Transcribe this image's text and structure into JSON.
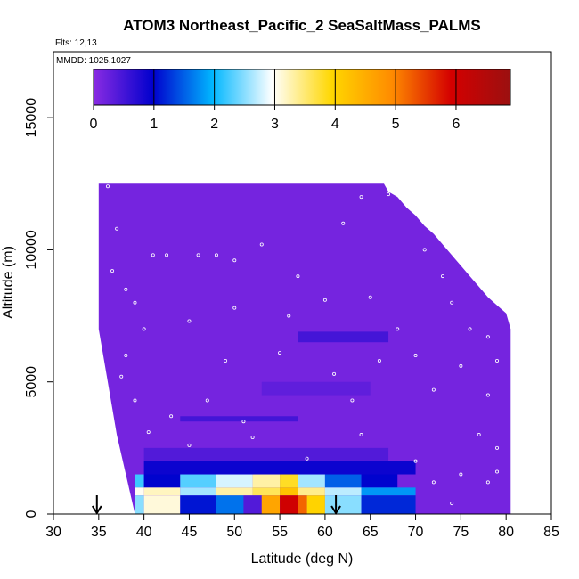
{
  "chart_data": {
    "type": "heatmap",
    "title": "ATOM3 Northeast_Pacific_2 SeaSaltMass_PALMS",
    "annotations": {
      "flights": "Flts: 12,13",
      "dates": "MMDD: 1025,1027"
    },
    "xlabel": "Latitude (deg N)",
    "ylabel": "Altitude (m)",
    "xlim": [
      30,
      85
    ],
    "ylim": [
      0,
      17500
    ],
    "x_ticks": [
      "30",
      "35",
      "40",
      "45",
      "50",
      "55",
      "60",
      "65",
      "70",
      "75",
      "80",
      "85"
    ],
    "y_ticks": [
      "0",
      "5000",
      "10000",
      "15000"
    ],
    "colorbar": {
      "ticks": [
        "0",
        "1",
        "2",
        "3",
        "4",
        "5",
        "6"
      ],
      "range": [
        0,
        6.9
      ],
      "colors": [
        "#8a2be2",
        "#0000cd",
        "#00b7ff",
        "#ffffff",
        "#ffd700",
        "#ff8c00",
        "#d40000",
        "#9b1010"
      ],
      "placement": "top"
    },
    "curtain_top_altitude": [
      [
        35,
        12500
      ],
      [
        66.5,
        12500
      ],
      [
        67,
        12200
      ],
      [
        68,
        12000
      ],
      [
        69,
        11600
      ],
      [
        70,
        11300
      ],
      [
        71,
        10900
      ],
      [
        72,
        10600
      ],
      [
        73,
        10200
      ],
      [
        74,
        9800
      ],
      [
        75,
        9400
      ],
      [
        76,
        9000
      ],
      [
        77,
        8600
      ],
      [
        78,
        8200
      ],
      [
        79,
        7900
      ],
      [
        80,
        7600
      ],
      [
        80.5,
        7000
      ]
    ],
    "curtain_left_edge": [
      [
        12500,
        35
      ],
      [
        9500,
        35
      ],
      [
        7000,
        35
      ],
      [
        5000,
        36
      ],
      [
        3000,
        37
      ],
      [
        1500,
        38
      ],
      [
        0,
        39
      ]
    ],
    "cells": [
      {
        "lat": [
          39,
          40
        ],
        "alt": [
          1000,
          1500
        ],
        "value": 2.2
      },
      {
        "lat": [
          40,
          44
        ],
        "alt": [
          1000,
          1500
        ],
        "value": 1.0
      },
      {
        "lat": [
          44,
          48
        ],
        "alt": [
          1000,
          1500
        ],
        "value": 2.3
      },
      {
        "lat": [
          48,
          52
        ],
        "alt": [
          1000,
          1500
        ],
        "value": 2.8
      },
      {
        "lat": [
          52,
          55
        ],
        "alt": [
          1000,
          1500
        ],
        "value": 3.3
      },
      {
        "lat": [
          55,
          57
        ],
        "alt": [
          1000,
          1500
        ],
        "value": 3.8
      },
      {
        "lat": [
          57,
          60
        ],
        "alt": [
          1000,
          1500
        ],
        "value": 2.6
      },
      {
        "lat": [
          60,
          64
        ],
        "alt": [
          1000,
          1500
        ],
        "value": 1.5
      },
      {
        "lat": [
          64,
          68
        ],
        "alt": [
          1000,
          1500
        ],
        "value": 1.0
      },
      {
        "lat": [
          39,
          40
        ],
        "alt": [
          700,
          1000
        ],
        "value": 3.0
      },
      {
        "lat": [
          40,
          44
        ],
        "alt": [
          700,
          1000
        ],
        "value": 3.2
      },
      {
        "lat": [
          44,
          48
        ],
        "alt": [
          700,
          1000
        ],
        "value": 2.6
      },
      {
        "lat": [
          48,
          52
        ],
        "alt": [
          700,
          1000
        ],
        "value": 3.3
      },
      {
        "lat": [
          52,
          55
        ],
        "alt": [
          700,
          1000
        ],
        "value": 3.6
      },
      {
        "lat": [
          55,
          57
        ],
        "alt": [
          700,
          1000
        ],
        "value": 4.2
      },
      {
        "lat": [
          57,
          60
        ],
        "alt": [
          700,
          1000
        ],
        "value": 3.4
      },
      {
        "lat": [
          60,
          64
        ],
        "alt": [
          700,
          1000
        ],
        "value": 2.7
      },
      {
        "lat": [
          64,
          70
        ],
        "alt": [
          700,
          1000
        ],
        "value": 1.8
      },
      {
        "lat": [
          39,
          40
        ],
        "alt": [
          0,
          700
        ],
        "value": 2.5
      },
      {
        "lat": [
          40,
          44
        ],
        "alt": [
          0,
          700
        ],
        "value": 3.1
      },
      {
        "lat": [
          44,
          48
        ],
        "alt": [
          0,
          700
        ],
        "value": 1.1
      },
      {
        "lat": [
          48,
          51
        ],
        "alt": [
          0,
          700
        ],
        "value": 1.6
      },
      {
        "lat": [
          51,
          53
        ],
        "alt": [
          0,
          700
        ],
        "value": 0.4
      },
      {
        "lat": [
          53,
          55
        ],
        "alt": [
          0,
          700
        ],
        "value": 4.6
      },
      {
        "lat": [
          55,
          57
        ],
        "alt": [
          0,
          700
        ],
        "value": 6.0
      },
      {
        "lat": [
          57,
          58
        ],
        "alt": [
          0,
          700
        ],
        "value": 5.2
      },
      {
        "lat": [
          58,
          60
        ],
        "alt": [
          0,
          700
        ],
        "value": 4.0
      },
      {
        "lat": [
          60,
          64
        ],
        "alt": [
          0,
          700
        ],
        "value": 2.5
      },
      {
        "lat": [
          64,
          70
        ],
        "alt": [
          0,
          700
        ],
        "value": 1.2
      },
      {
        "lat": [
          40,
          70
        ],
        "alt": [
          1500,
          2000
        ],
        "value": 0.9
      },
      {
        "lat": [
          40,
          67
        ],
        "alt": [
          2000,
          2500
        ],
        "value": 0.4
      },
      {
        "lat": [
          44,
          57
        ],
        "alt": [
          3500,
          3700
        ],
        "value": 0.5
      },
      {
        "lat": [
          53,
          65
        ],
        "alt": [
          4500,
          5000
        ],
        "value": 0.3
      },
      {
        "lat": [
          57,
          67
        ],
        "alt": [
          6500,
          6900
        ],
        "value": 0.5
      }
    ],
    "sample_points": [
      [
        36,
        12400
      ],
      [
        37,
        10800
      ],
      [
        36.5,
        9200
      ],
      [
        38,
        8500
      ],
      [
        39,
        8000
      ],
      [
        41,
        9800
      ],
      [
        42.5,
        9800
      ],
      [
        46,
        9800
      ],
      [
        48,
        9800
      ],
      [
        50,
        9600
      ],
      [
        53,
        10200
      ],
      [
        60,
        8100
      ],
      [
        62,
        11000
      ],
      [
        64,
        12000
      ],
      [
        67,
        12100
      ],
      [
        71,
        10000
      ],
      [
        73,
        9000
      ],
      [
        74,
        8000
      ],
      [
        76,
        7000
      ],
      [
        78,
        6700
      ],
      [
        79,
        5800
      ],
      [
        78,
        4500
      ],
      [
        77,
        3000
      ],
      [
        79,
        2500
      ],
      [
        78,
        1200
      ],
      [
        74,
        400
      ],
      [
        72,
        1200
      ],
      [
        70,
        6000
      ],
      [
        68,
        7000
      ],
      [
        65,
        8200
      ],
      [
        57,
        9000
      ],
      [
        50,
        7800
      ],
      [
        45,
        7300
      ],
      [
        40,
        7000
      ],
      [
        38,
        6000
      ],
      [
        37.5,
        5200
      ],
      [
        39,
        4300
      ],
      [
        40.5,
        3100
      ],
      [
        43,
        3700
      ],
      [
        45,
        2600
      ],
      [
        47,
        4300
      ],
      [
        49,
        5800
      ],
      [
        51,
        3500
      ],
      [
        55,
        6100
      ],
      [
        58,
        2100
      ],
      [
        61,
        5300
      ],
      [
        63,
        4300
      ],
      [
        64,
        3000
      ],
      [
        70,
        2000
      ],
      [
        72,
        4700
      ],
      [
        75,
        5600
      ],
      [
        66,
        5800
      ],
      [
        75,
        1500
      ],
      [
        79,
        1600
      ],
      [
        52,
        2900
      ],
      [
        56,
        7500
      ]
    ],
    "arrows_at_latitude": [
      34.8,
      61.2
    ],
    "grid": false
  }
}
